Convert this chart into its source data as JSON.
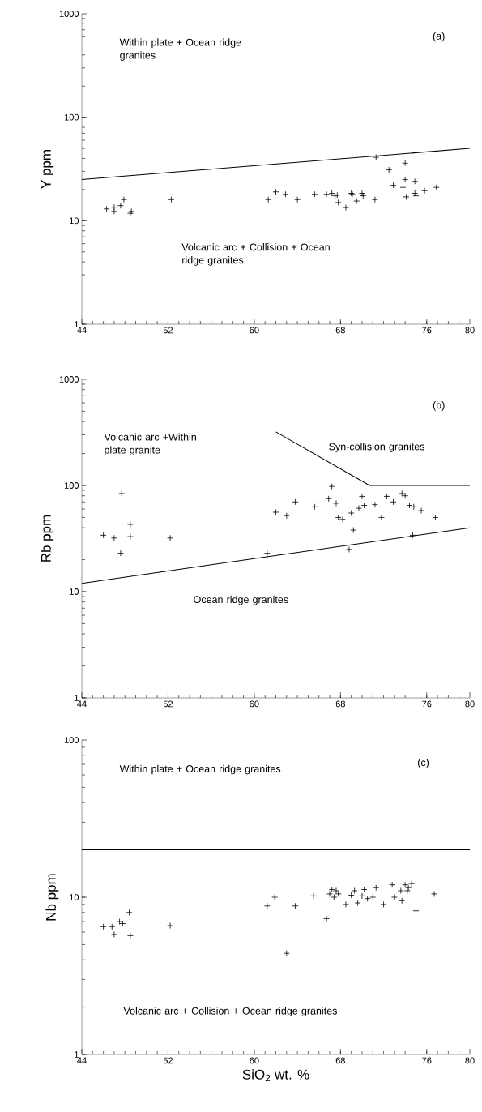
{
  "chart_data": [
    {
      "type": "scatter",
      "ylabel": "Y ppm",
      "log": "y",
      "xlim": [
        44,
        80
      ],
      "xticks": [
        44,
        52,
        60,
        68,
        76,
        80
      ],
      "ylim": [
        1,
        1000
      ],
      "yticks": [
        1,
        10,
        100,
        1000
      ],
      "annotations": [
        "Within plate + Ocean ridge granites",
        "(a)",
        "Volcanic arc + Collision + Ocean ridge granites"
      ],
      "series": [
        {
          "marker": "cross",
          "color": "#000000",
          "x": [
            46.3,
            47.0,
            47.0,
            47.6,
            47.9,
            48.5,
            48.6,
            52.3,
            61.3,
            62.0,
            62.9,
            64.0,
            65.6,
            66.7,
            67.2,
            67.5,
            67.7,
            67.8,
            68.5,
            69.0,
            69.1,
            69.5,
            70.0,
            70.1,
            71.2,
            71.3,
            72.5,
            72.9,
            73.8,
            74.0,
            74.0,
            74.1,
            74.9,
            74.9,
            75.0,
            75.8,
            76.9
          ],
          "values": [
            13,
            13.5,
            12.3,
            14,
            16,
            11.8,
            12.3,
            16,
            16,
            19,
            18,
            16,
            18,
            18,
            18.4,
            17.4,
            17.7,
            15,
            13.4,
            18.4,
            18,
            15.5,
            18.4,
            17.4,
            16,
            41,
            31,
            22,
            21,
            36,
            25,
            17,
            24,
            18.4,
            17.4,
            19.5,
            21
          ]
        },
        {
          "type": "line",
          "color": "#000000",
          "x": [
            44,
            80
          ],
          "values": [
            25,
            50
          ]
        }
      ]
    },
    {
      "type": "scatter",
      "ylabel": "Rb ppm",
      "log": "y",
      "xlim": [
        44,
        80
      ],
      "xticks": [
        44,
        52,
        60,
        68,
        76,
        80
      ],
      "ylim": [
        1,
        1000
      ],
      "yticks": [
        1,
        10,
        100,
        1000
      ],
      "annotations": [
        "(b)",
        "Volcanic arc +Within plate granite",
        "Syn-collision granites",
        "Ocean ridge granites"
      ],
      "series": [
        {
          "marker": "cross",
          "color": "#000000",
          "x": [
            46.0,
            47.0,
            47.6,
            47.7,
            48.5,
            48.5,
            52.2,
            61.2,
            62.0,
            63.0,
            63.8,
            65.6,
            66.9,
            67.2,
            67.6,
            67.8,
            68.2,
            68.8,
            69.0,
            69.2,
            69.7,
            70.0,
            70.2,
            71.2,
            71.8,
            72.3,
            72.9,
            73.7,
            74.0,
            74.4,
            74.7,
            74.8,
            75.5,
            76.8
          ],
          "values": [
            34,
            32,
            23,
            84,
            43,
            33,
            32,
            23,
            56,
            52,
            70,
            63,
            75,
            98,
            68,
            50,
            48,
            25,
            55,
            38,
            61,
            79,
            65,
            66,
            50,
            79,
            70,
            84,
            80,
            65,
            34,
            63,
            58,
            50
          ]
        },
        {
          "type": "line",
          "color": "#000000",
          "x": [
            44,
            80
          ],
          "values": [
            12,
            40
          ]
        },
        {
          "type": "line",
          "color": "#000000",
          "x": [
            62,
            70.7,
            80
          ],
          "values": [
            320,
            100,
            100
          ]
        }
      ]
    },
    {
      "type": "scatter",
      "ylabel": "Nb ppm",
      "xlabel": "SiO$_{2}$ wt. %",
      "log": "y",
      "xlim": [
        44,
        80
      ],
      "xticks": [
        44,
        52,
        60,
        68,
        76,
        80
      ],
      "ylim": [
        1,
        100
      ],
      "yticks": [
        1,
        10,
        100
      ],
      "annotations": [
        "Within plate + Ocean ridge granites",
        "(c)",
        "Volcanic arc + Collision + Ocean ridge granites"
      ],
      "series": [
        {
          "marker": "cross",
          "color": "#000000",
          "x": [
            46.0,
            46.8,
            47.0,
            47.5,
            47.8,
            48.4,
            48.5,
            52.2,
            61.2,
            61.9,
            63.0,
            63.8,
            65.5,
            66.7,
            67.0,
            67.2,
            67.4,
            67.6,
            67.8,
            68.5,
            69.0,
            69.3,
            69.6,
            70.0,
            70.2,
            70.5,
            71.0,
            71.3,
            72.0,
            72.8,
            73.0,
            73.6,
            73.7,
            74.0,
            74.2,
            74.3,
            74.6,
            75.0,
            76.7
          ],
          "values": [
            6.5,
            6.5,
            5.8,
            7.0,
            6.8,
            8.0,
            5.7,
            6.6,
            8.8,
            10.0,
            4.4,
            8.8,
            10.2,
            7.3,
            10.5,
            11.2,
            10.0,
            11.0,
            10.5,
            9.0,
            10.3,
            11.0,
            9.2,
            10.2,
            11.2,
            9.8,
            10.0,
            11.5,
            9.0,
            12.0,
            10.0,
            11.0,
            9.5,
            12.0,
            11.0,
            11.5,
            12.2,
            8.2,
            10.5
          ]
        },
        {
          "type": "line",
          "color": "#000000",
          "x": [
            44,
            80
          ],
          "values": [
            20,
            20
          ]
        }
      ]
    }
  ]
}
